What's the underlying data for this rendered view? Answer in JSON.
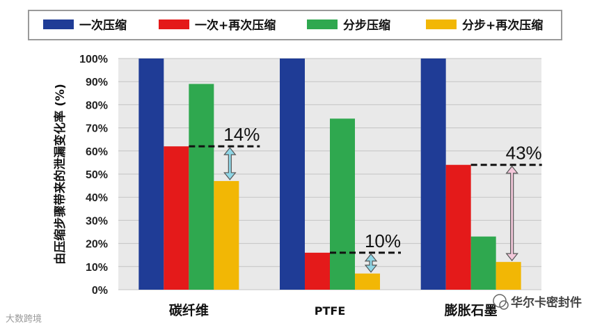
{
  "chart_data": {
    "type": "bar",
    "categories": [
      "碳纤维",
      "PTFE",
      "膨胀石墨"
    ],
    "series": [
      {
        "name": "一次压缩",
        "color": "#1f3c96",
        "values": [
          100,
          100,
          100
        ]
      },
      {
        "name": "一次+再次压缩",
        "color": "#e41a1a",
        "values": [
          62,
          16,
          54
        ]
      },
      {
        "name": "分步压缩",
        "color": "#2fa84f",
        "values": [
          89,
          74,
          23
        ]
      },
      {
        "name": "分步+再次压缩",
        "color": "#f2b705",
        "values": [
          47,
          7,
          12
        ]
      }
    ],
    "ylabel": "由压缩步骤带来的泄漏变化率 (%)",
    "ylim": [
      0,
      100
    ],
    "yticks": [
      "0%",
      "10%",
      "20%",
      "30%",
      "40%",
      "50%",
      "60%",
      "70%",
      "80%",
      "90%",
      "100%"
    ],
    "grid": true,
    "legend_position": "top",
    "annotations": [
      {
        "category": "碳纤维",
        "text": "14%",
        "from": 62,
        "to": 47,
        "arrow_color": "#8fd6e6"
      },
      {
        "category": "PTFE",
        "text": "10%",
        "from": 16,
        "to": 7,
        "arrow_color": "#8fd6e6"
      },
      {
        "category": "膨胀石墨",
        "text": "43%",
        "from": 54,
        "to": 12,
        "arrow_color": "#f3c8da"
      }
    ]
  },
  "watermarks": {
    "right": "华尔卡密封件",
    "left": "大数跨境"
  }
}
